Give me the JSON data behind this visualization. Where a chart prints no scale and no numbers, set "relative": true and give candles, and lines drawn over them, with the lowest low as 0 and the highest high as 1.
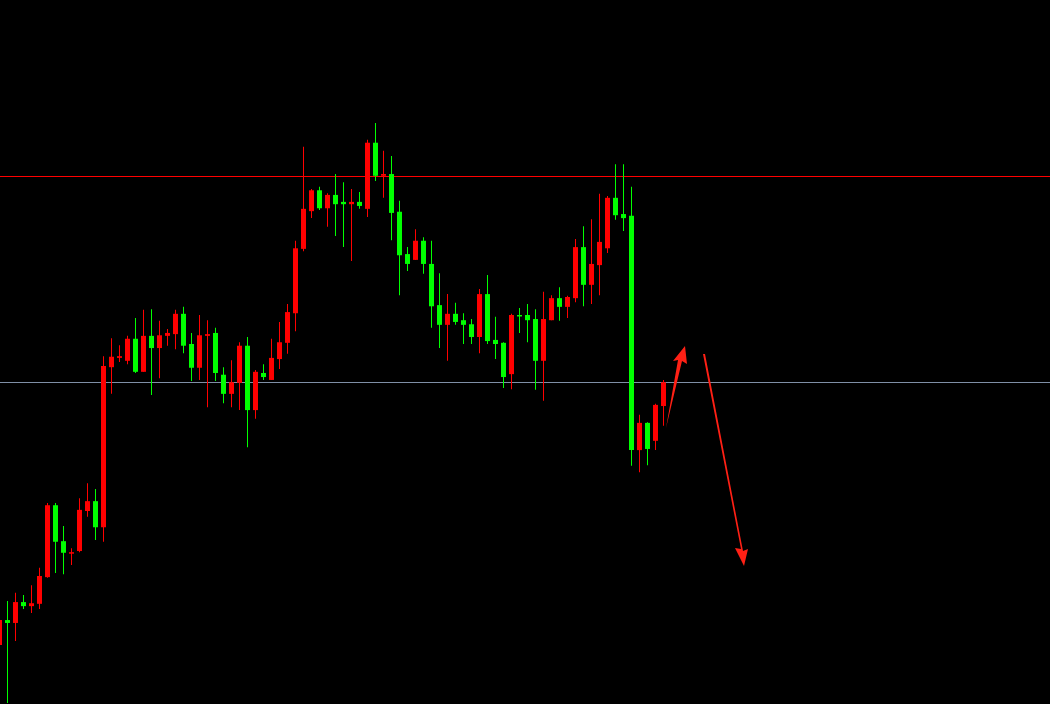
{
  "chart_data": {
    "type": "candlestick",
    "relative": true,
    "categories": [
      null,
      null,
      null,
      null,
      null,
      null,
      null,
      null,
      null,
      null,
      null,
      null,
      null,
      null,
      null,
      null,
      null,
      null,
      null,
      null,
      null,
      null,
      null,
      null,
      null,
      null,
      null,
      null,
      null,
      null,
      null,
      null,
      null,
      null,
      null,
      null,
      null,
      null,
      null,
      null,
      null,
      null,
      null,
      null,
      null,
      null,
      null,
      null,
      null,
      null,
      null,
      null,
      null,
      null,
      null,
      null,
      null,
      null,
      null,
      null,
      null,
      null,
      null,
      null,
      null,
      null,
      null,
      null,
      null,
      null,
      null,
      null,
      null,
      null,
      null,
      null,
      null,
      null,
      null,
      null,
      null,
      null,
      null,
      null
    ],
    "ohlc": [
      [
        0.1,
        0.147,
        0.095,
        0.143
      ],
      [
        0.143,
        0.176,
        0,
        0.138
      ],
      [
        0.138,
        0.19,
        0.107,
        0.174
      ],
      [
        0.174,
        0.186,
        0.162,
        0.167
      ],
      [
        0.167,
        0.203,
        0.155,
        0.172
      ],
      [
        0.171,
        0.233,
        0.162,
        0.219
      ],
      [
        0.217,
        0.345,
        0.216,
        0.341
      ],
      [
        0.341,
        0.345,
        0.224,
        0.278
      ],
      [
        0.279,
        0.305,
        0.222,
        0.259
      ],
      [
        0.259,
        0.267,
        0.238,
        0.26
      ],
      [
        0.262,
        0.353,
        0.26,
        0.333
      ],
      [
        0.331,
        0.379,
        0.321,
        0.348
      ],
      [
        0.348,
        0.369,
        0.281,
        0.303
      ],
      [
        0.303,
        0.598,
        0.278,
        0.581
      ],
      [
        0.579,
        0.629,
        0.533,
        0.597
      ],
      [
        0.595,
        0.617,
        0.588,
        0.598
      ],
      [
        0.59,
        0.633,
        0.584,
        0.628
      ],
      [
        0.628,
        0.664,
        0.569,
        0.571
      ],
      [
        0.571,
        0.678,
        0.571,
        0.633
      ],
      [
        0.633,
        0.679,
        0.531,
        0.612
      ],
      [
        0.612,
        0.659,
        0.56,
        0.634
      ],
      [
        0.633,
        0.645,
        0.616,
        0.638
      ],
      [
        0.636,
        0.678,
        0.61,
        0.671
      ],
      [
        0.671,
        0.683,
        0.603,
        0.616
      ],
      [
        0.619,
        0.638,
        0.555,
        0.578
      ],
      [
        0.578,
        0.669,
        0.557,
        0.634
      ],
      [
        0.633,
        0.66,
        0.51,
        0.636
      ],
      [
        0.638,
        0.647,
        0.555,
        0.569
      ],
      [
        0.566,
        0.579,
        0.517,
        0.533
      ],
      [
        0.533,
        0.591,
        0.51,
        0.553
      ],
      [
        0.552,
        0.622,
        0.505,
        0.616
      ],
      [
        0.616,
        0.631,
        0.441,
        0.505
      ],
      [
        0.505,
        0.574,
        0.49,
        0.571
      ],
      [
        0.569,
        0.584,
        0.557,
        0.562
      ],
      [
        0.557,
        0.628,
        0.557,
        0.595
      ],
      [
        0.593,
        0.657,
        0.576,
        0.622
      ],
      [
        0.621,
        0.688,
        0.602,
        0.674
      ],
      [
        0.672,
        0.797,
        0.641,
        0.784
      ],
      [
        0.783,
        0.959,
        0.779,
        0.852
      ],
      [
        0.848,
        0.886,
        0.836,
        0.884
      ],
      [
        0.884,
        0.89,
        0.85,
        0.853
      ],
      [
        0.853,
        0.879,
        0.821,
        0.876
      ],
      [
        0.876,
        0.912,
        0.805,
        0.86
      ],
      [
        0.864,
        0.898,
        0.786,
        0.86
      ],
      [
        0.86,
        0.886,
        0.762,
        0.864
      ],
      [
        0.864,
        0.881,
        0.852,
        0.857
      ],
      [
        0.852,
        0.971,
        0.838,
        0.966
      ],
      [
        0.966,
        1,
        0.9,
        0.909
      ],
      [
        0.909,
        0.952,
        0.871,
        0.912
      ],
      [
        0.912,
        0.943,
        0.798,
        0.845
      ],
      [
        0.847,
        0.866,
        0.703,
        0.772
      ],
      [
        0.774,
        0.786,
        0.745,
        0.757
      ],
      [
        0.764,
        0.817,
        0.764,
        0.797
      ],
      [
        0.797,
        0.803,
        0.74,
        0.757
      ],
      [
        0.757,
        0.797,
        0.647,
        0.684
      ],
      [
        0.686,
        0.741,
        0.612,
        0.652
      ],
      [
        0.652,
        0.705,
        0.59,
        0.671
      ],
      [
        0.671,
        0.69,
        0.652,
        0.657
      ],
      [
        0.66,
        0.672,
        0.619,
        0.652
      ],
      [
        0.653,
        0.662,
        0.619,
        0.631
      ],
      [
        0.631,
        0.714,
        0.603,
        0.705
      ],
      [
        0.705,
        0.738,
        0.619,
        0.624
      ],
      [
        0.626,
        0.666,
        0.593,
        0.619
      ],
      [
        0.621,
        0.622,
        0.543,
        0.562
      ],
      [
        0.567,
        0.671,
        0.541,
        0.669
      ],
      [
        0.669,
        0.681,
        0.638,
        0.667
      ],
      [
        0.669,
        0.688,
        0.622,
        0.66
      ],
      [
        0.662,
        0.679,
        0.54,
        0.59
      ],
      [
        0.59,
        0.709,
        0.521,
        0.662
      ],
      [
        0.66,
        0.703,
        0.66,
        0.698
      ],
      [
        0.698,
        0.717,
        0.659,
        0.683
      ],
      [
        0.683,
        0.702,
        0.664,
        0.7
      ],
      [
        0.698,
        0.8,
        0.691,
        0.786
      ],
      [
        0.786,
        0.822,
        0.684,
        0.721
      ],
      [
        0.721,
        0.834,
        0.688,
        0.757
      ],
      [
        0.755,
        0.878,
        0.703,
        0.795
      ],
      [
        0.784,
        0.874,
        0.776,
        0.871
      ],
      [
        0.871,
        0.929,
        0.833,
        0.841
      ],
      [
        0.843,
        0.929,
        0.814,
        0.836
      ],
      [
        0.84,
        0.89,
        0.409,
        0.436
      ],
      [
        0.436,
        0.497,
        0.398,
        0.483
      ],
      [
        0.483,
        0.484,
        0.41,
        0.438
      ],
      [
        0.452,
        0.516,
        0.436,
        0.514
      ],
      [
        0.512,
        0.557,
        0.478,
        0.553
      ]
    ],
    "colors": [
      "#ff0000",
      "#00ff00",
      "#ff0000",
      "#00ff00",
      "#ff0000",
      "#ff0000",
      "#ff0000",
      "#00ff00",
      "#00ff00",
      "#ff0000",
      "#ff0000",
      "#ff0000",
      "#00ff00",
      "#ff0000",
      "#ff0000",
      "#ff0000",
      "#ff0000",
      "#00ff00",
      "#ff0000",
      "#00ff00",
      "#ff0000",
      "#ff0000",
      "#ff0000",
      "#00ff00",
      "#00ff00",
      "#ff0000",
      "#ff0000",
      "#00ff00",
      "#00ff00",
      "#ff0000",
      "#ff0000",
      "#00ff00",
      "#ff0000",
      "#00ff00",
      "#ff0000",
      "#ff0000",
      "#ff0000",
      "#ff0000",
      "#ff0000",
      "#ff0000",
      "#00ff00",
      "#ff0000",
      "#00ff00",
      "#00ff00",
      "#ff0000",
      "#00ff00",
      "#ff0000",
      "#00ff00",
      "#ff0000",
      "#00ff00",
      "#00ff00",
      "#00ff00",
      "#ff0000",
      "#00ff00",
      "#00ff00",
      "#00ff00",
      "#ff0000",
      "#00ff00",
      "#00ff00",
      "#00ff00",
      "#ff0000",
      "#00ff00",
      "#00ff00",
      "#00ff00",
      "#ff0000",
      "#00ff00",
      "#00ff00",
      "#00ff00",
      "#ff0000",
      "#ff0000",
      "#00ff00",
      "#ff0000",
      "#ff0000",
      "#00ff00",
      "#ff0000",
      "#ff0000",
      "#ff0000",
      "#00ff00",
      "#00ff00",
      "#00ff00",
      "#ff0000",
      "#00ff00",
      "#ff0000",
      "#ff0000"
    ],
    "ref_lines": [
      {
        "axis": "y",
        "value": 0.909,
        "color": "#ff0000"
      },
      {
        "axis": "y",
        "value": 0.553,
        "color": "#7f8fa6"
      }
    ]
  }
}
